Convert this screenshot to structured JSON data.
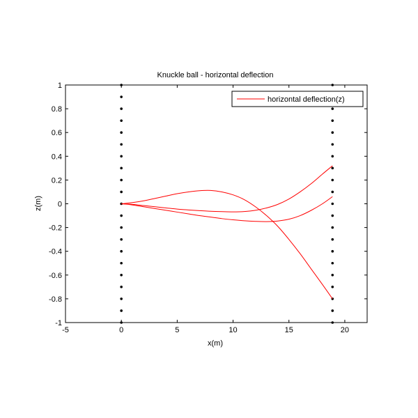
{
  "chart_data": {
    "type": "line",
    "title": "Knuckle ball - horizontal deflection",
    "xlabel": "x(m)",
    "ylabel": "z(m)",
    "xlim": [
      -5,
      22
    ],
    "ylim": [
      -1,
      1
    ],
    "xticks": [
      -5,
      0,
      5,
      10,
      15,
      20
    ],
    "yticks": [
      -1,
      -0.8,
      -0.6,
      -0.4,
      -0.2,
      0,
      0.2,
      0.4,
      0.6,
      0.8,
      1
    ],
    "xtick_labels": [
      "-5",
      "0",
      "5",
      "10",
      "15",
      "20"
    ],
    "ytick_labels": [
      "-1",
      "-0.8",
      "-0.6",
      "-0.4",
      "-0.2",
      "0",
      "0.2",
      "0.4",
      "0.6",
      "0.8",
      "1"
    ],
    "grid": false,
    "legend": {
      "position": "top-right",
      "entries": [
        {
          "label": "horizontal deflection(z)",
          "color": "#ff0000"
        }
      ]
    },
    "series": [
      {
        "color": "#ff0000",
        "x": [
          0,
          1,
          2,
          3,
          4,
          5,
          6,
          7,
          8,
          9,
          10,
          11,
          12,
          13,
          14,
          15,
          16,
          17,
          18,
          18.9
        ],
        "y": [
          0,
          0.01,
          0.025,
          0.045,
          0.065,
          0.085,
          0.1,
          0.11,
          0.112,
          0.1,
          0.075,
          0.035,
          -0.025,
          -0.1,
          -0.19,
          -0.3,
          -0.42,
          -0.55,
          -0.68,
          -0.8
        ]
      },
      {
        "color": "#ff0000",
        "x": [
          0,
          1,
          2,
          3,
          4,
          5,
          6,
          7,
          8,
          9,
          10,
          11,
          12,
          13,
          14,
          15,
          16,
          17,
          18,
          18.9
        ],
        "y": [
          0,
          -0.005,
          -0.015,
          -0.025,
          -0.035,
          -0.045,
          -0.052,
          -0.058,
          -0.063,
          -0.066,
          -0.068,
          -0.065,
          -0.055,
          -0.035,
          -0.005,
          0.04,
          0.1,
          0.17,
          0.25,
          0.32
        ]
      },
      {
        "color": "#ff0000",
        "x": [
          0,
          1,
          2,
          3,
          4,
          5,
          6,
          7,
          8,
          9,
          10,
          11,
          12,
          13,
          14,
          15,
          16,
          17,
          18,
          18.9
        ],
        "y": [
          0,
          -0.01,
          -0.025,
          -0.04,
          -0.055,
          -0.07,
          -0.085,
          -0.1,
          -0.112,
          -0.125,
          -0.135,
          -0.143,
          -0.148,
          -0.15,
          -0.145,
          -0.13,
          -0.1,
          -0.055,
          0.0,
          0.06
        ]
      }
    ],
    "marker_columns": [
      {
        "x": 0,
        "y": [
          -1,
          -0.9,
          -0.8,
          -0.7,
          -0.6,
          -0.5,
          -0.4,
          -0.3,
          -0.2,
          -0.1,
          0,
          0.1,
          0.2,
          0.3,
          0.4,
          0.5,
          0.6,
          0.7,
          0.8,
          0.9,
          1
        ]
      },
      {
        "x": 18.9,
        "y": [
          -1,
          -0.9,
          -0.8,
          -0.7,
          -0.6,
          -0.5,
          -0.4,
          -0.3,
          -0.2,
          -0.1,
          0,
          0.1,
          0.2,
          0.3,
          0.4,
          0.5,
          0.6,
          0.7,
          0.8,
          0.9,
          1
        ]
      }
    ]
  }
}
